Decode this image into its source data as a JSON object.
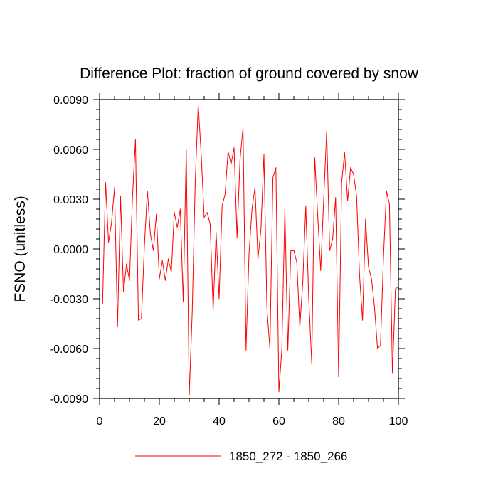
{
  "chart_data": {
    "type": "line",
    "title": "Difference Plot: fraction of ground covered by snow",
    "xlabel": "",
    "ylabel": "FSNO  (unitless)",
    "xlim": [
      0,
      100
    ],
    "ylim": [
      -0.009,
      0.009
    ],
    "x_ticks": [
      "0",
      "20",
      "40",
      "60",
      "80",
      "100"
    ],
    "y_ticks": [
      "0.0090",
      "0.0060",
      "0.0030",
      "0.0000",
      "-0.0030",
      "-0.0060",
      "-0.0090"
    ],
    "grid": false,
    "legend_position": "bottom-center",
    "series": [
      {
        "name": "1850_272 - 1850_266",
        "color": "#ff0000",
        "x": [
          1,
          2,
          3,
          4,
          5,
          6,
          7,
          8,
          9,
          10,
          11,
          12,
          13,
          14,
          15,
          16,
          17,
          18,
          19,
          20,
          21,
          22,
          23,
          24,
          25,
          26,
          27,
          28,
          29,
          30,
          31,
          32,
          33,
          34,
          35,
          36,
          37,
          38,
          39,
          40,
          41,
          42,
          43,
          44,
          45,
          46,
          47,
          48,
          49,
          50,
          51,
          52,
          53,
          54,
          55,
          56,
          57,
          58,
          59,
          60,
          61,
          62,
          63,
          64,
          65,
          66,
          67,
          68,
          69,
          70,
          71,
          72,
          73,
          74,
          75,
          76,
          77,
          78,
          79,
          80,
          81,
          82,
          83,
          84,
          85,
          86,
          87,
          88,
          89,
          90,
          91,
          92,
          93,
          94,
          95,
          96,
          97,
          98,
          99,
          100
        ],
        "values": [
          -0.0033,
          0.004,
          0.0004,
          0.0016,
          0.0037,
          -0.0047,
          0.0032,
          -0.0026,
          -0.0009,
          -0.0019,
          0.0031,
          0.0066,
          -0.0043,
          -0.0042,
          0.0002,
          0.0035,
          0.0009,
          -0.0001,
          0.0021,
          -0.0018,
          -0.0007,
          -0.0019,
          -0.0006,
          -0.0014,
          0.0022,
          0.0013,
          0.0024,
          -0.0032,
          0.006,
          -0.0088,
          -0.0038,
          0.004,
          0.0087,
          0.0057,
          0.0019,
          0.0022,
          0.0015,
          -0.0037,
          0.001,
          -0.003,
          0.0026,
          0.0033,
          0.0059,
          0.0051,
          0.0061,
          0.0007,
          0.0054,
          0.0073,
          -0.0061,
          -0.0003,
          0.0024,
          0.0037,
          -0.0006,
          0.0012,
          0.0057,
          -0.0036,
          -0.006,
          0.0043,
          0.0049,
          -0.0086,
          -0.006,
          0.0024,
          -0.0061,
          -0.0001,
          -0.0001,
          -0.0008,
          -0.0047,
          -0.002,
          0.0026,
          -0.003,
          -0.0069,
          0.0055,
          0.002,
          -0.0013,
          0.003,
          0.0071,
          -0.0001,
          0.0006,
          0.0031,
          -0.0077,
          0.004,
          0.0058,
          0.0029,
          0.0049,
          0.0045,
          0.0032,
          -0.0016,
          -0.0043,
          0.0018,
          -0.0011,
          -0.0018,
          -0.0035,
          -0.006,
          -0.0058,
          -0.0005,
          0.0035,
          0.0027,
          -0.0075,
          -0.0024,
          -0.0023
        ]
      }
    ]
  }
}
